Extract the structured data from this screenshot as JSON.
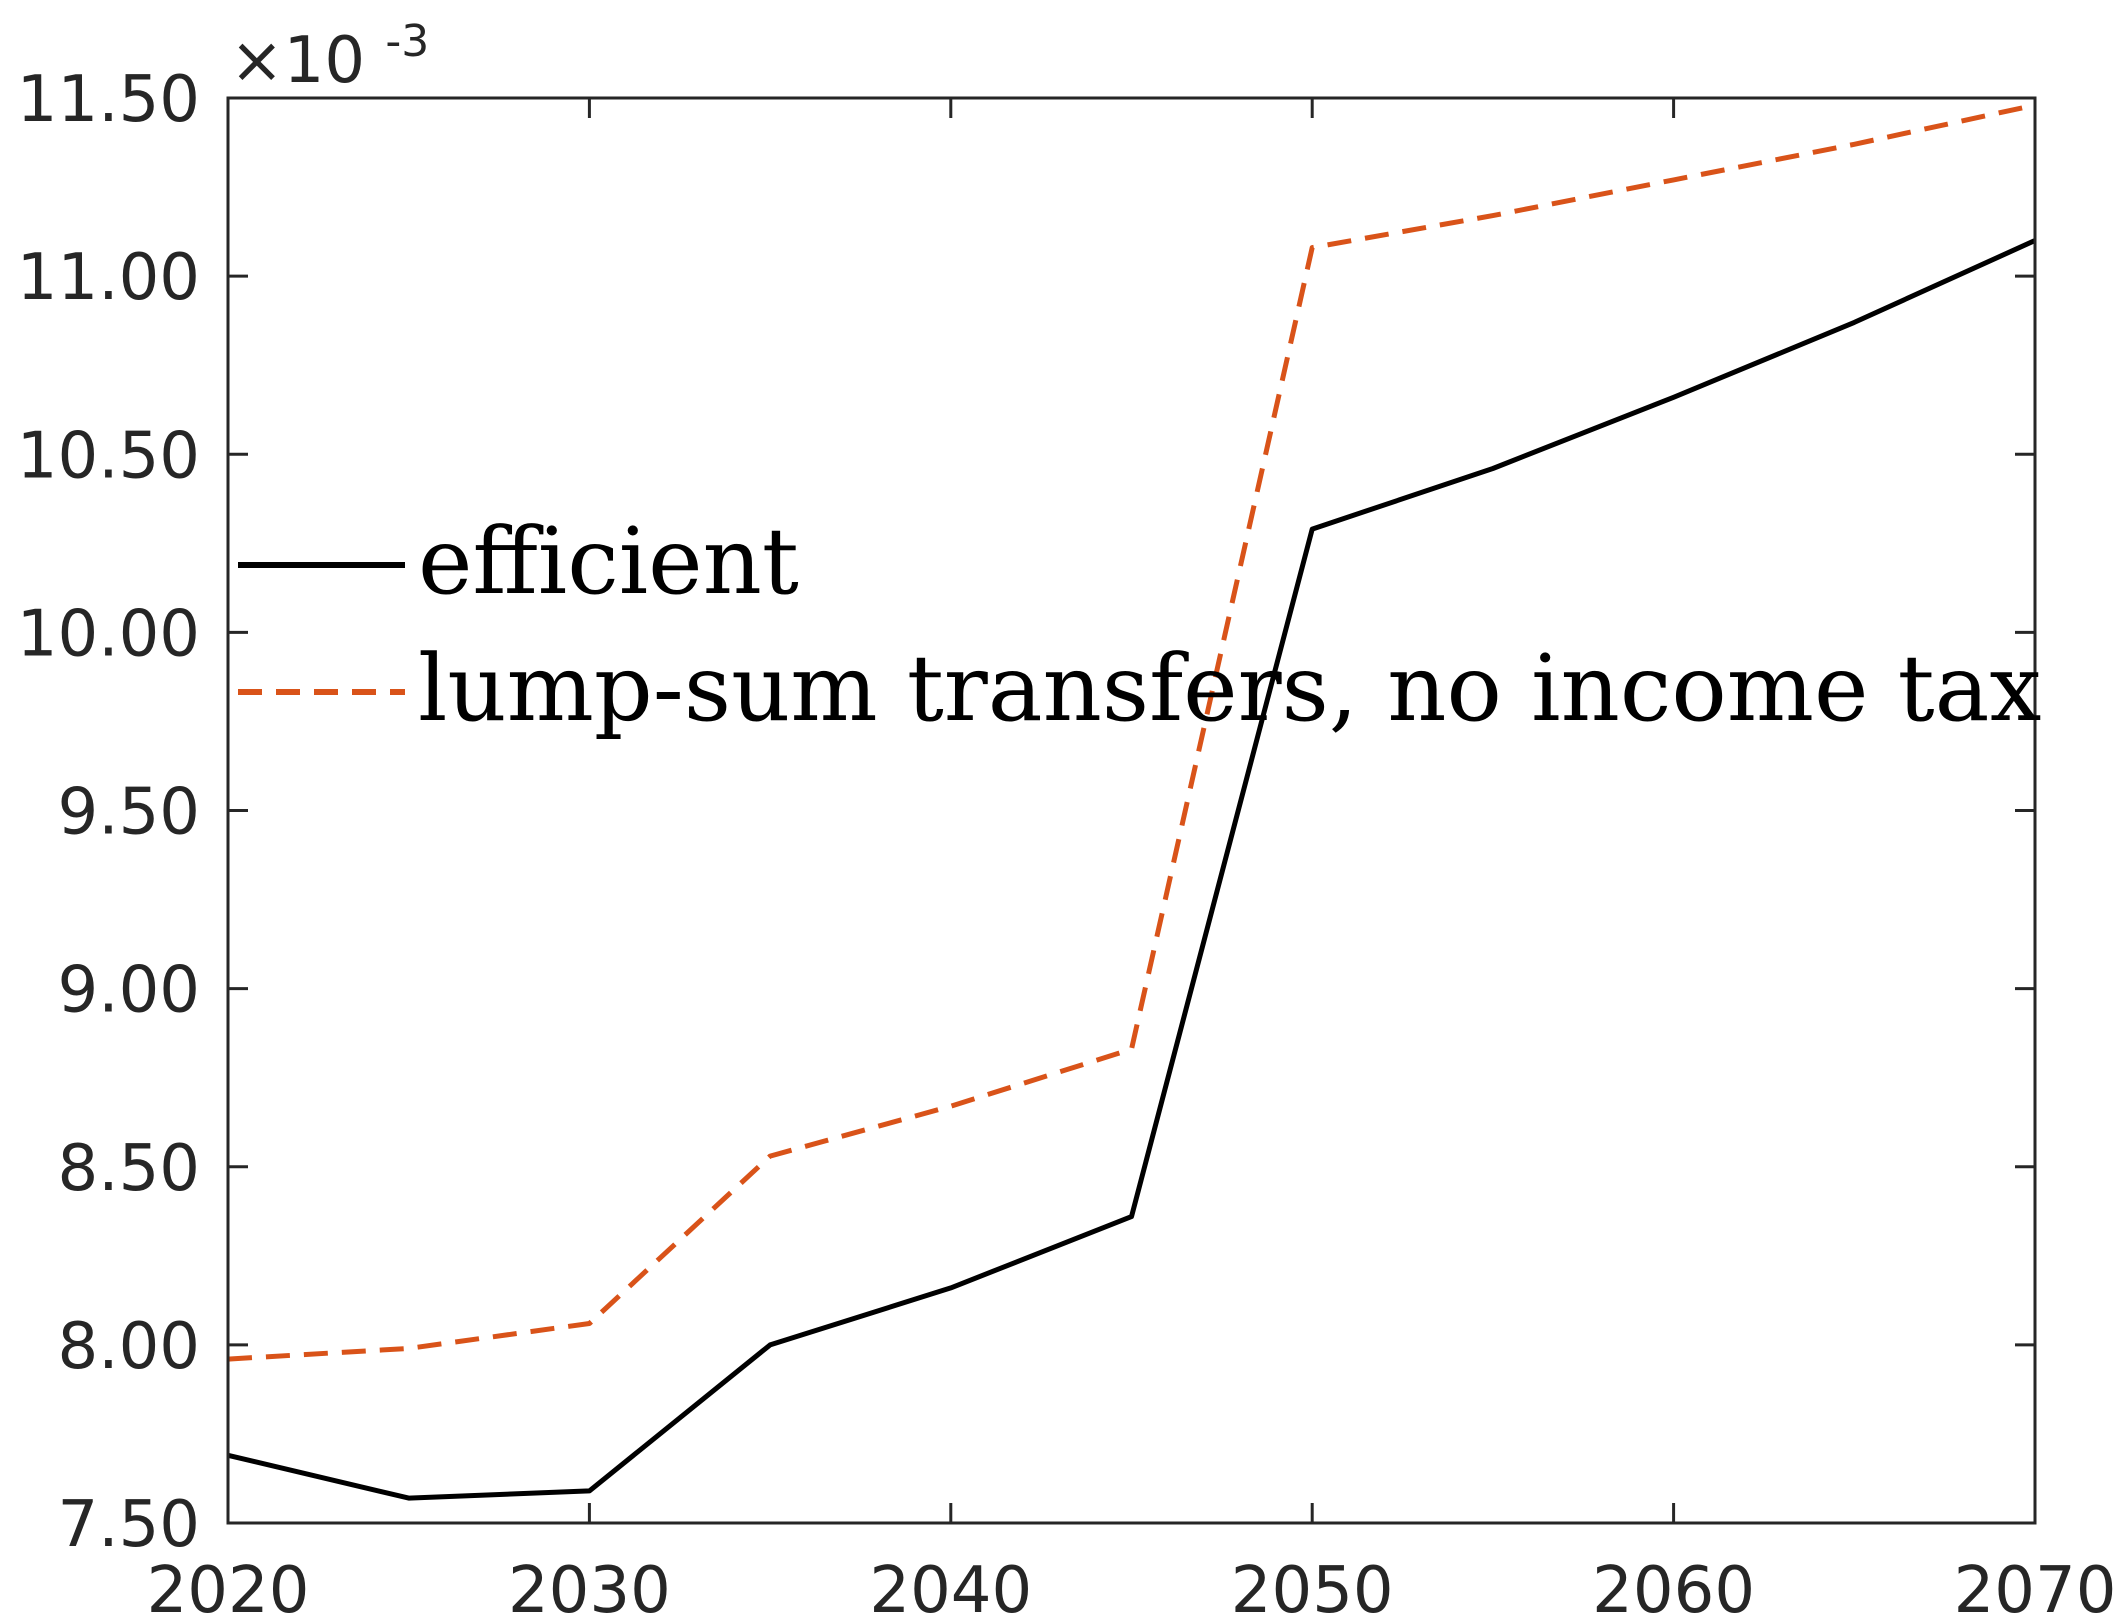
{
  "chart_data": {
    "type": "line",
    "x": [
      2020,
      2025,
      2030,
      2035,
      2040,
      2045,
      2050,
      2055,
      2060,
      2065,
      2070
    ],
    "series": [
      {
        "name": "efficient",
        "color": "#000000",
        "dash": "solid",
        "values": [
          7.69,
          7.57,
          7.59,
          8.0,
          8.16,
          8.36,
          10.29,
          10.46,
          10.66,
          10.87,
          11.1
        ]
      },
      {
        "name": "lump-sum transfers, no income tax",
        "color": "#D95319",
        "dash": "dashed",
        "values": [
          7.96,
          7.99,
          8.06,
          8.53,
          8.67,
          8.83,
          11.08,
          11.17,
          11.27,
          11.37,
          11.48
        ]
      }
    ],
    "xlim": [
      2020,
      2070
    ],
    "ylim": [
      7.5,
      11.5
    ],
    "xticks": [
      "2020",
      "2030",
      "2040",
      "2050",
      "2060",
      "2070"
    ],
    "yticks": [
      "7.50",
      "8.00",
      "8.50",
      "9.00",
      "9.50",
      "10.00",
      "10.50",
      "11.00",
      "11.50"
    ],
    "y_exponent": {
      "base": "×10",
      "power": "-3"
    },
    "legend_location": "middle-left",
    "grid": false
  }
}
